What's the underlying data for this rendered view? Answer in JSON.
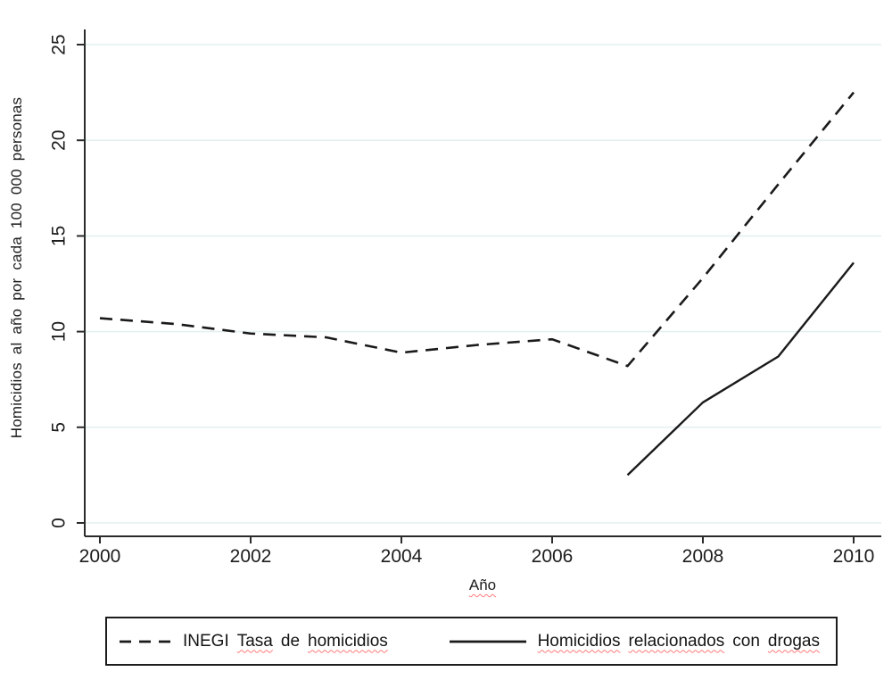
{
  "figure": {
    "background": "#ffffff",
    "y_axis_title": "Homicidios al año por cada 100 000 personas",
    "x_axis_title": "Año"
  },
  "chart_data": {
    "type": "line",
    "title": "",
    "xlabel": "Año",
    "ylabel": "Homicidios al año por cada 100 000 personas",
    "xlim": [
      2000,
      2010
    ],
    "ylim": [
      0,
      25
    ],
    "x_ticks": [
      2000,
      2002,
      2004,
      2006,
      2008,
      2010
    ],
    "y_ticks": [
      0,
      5,
      10,
      15,
      20,
      25
    ],
    "grid": "horizontal-only",
    "grid_color": "#e4eff1",
    "axis_color": "#2b2b2b",
    "legend_position": "bottom",
    "series": [
      {
        "name": "INEGI Tasa de homicidios",
        "line_style": "dashed",
        "color": "#1a1a1a",
        "x": [
          2000,
          2001,
          2002,
          2003,
          2004,
          2005,
          2006,
          2007,
          2008,
          2009,
          2010
        ],
        "values": [
          10.7,
          10.4,
          9.9,
          9.7,
          8.9,
          9.3,
          9.6,
          8.2,
          12.8,
          17.7,
          22.5
        ]
      },
      {
        "name": "Homicidios relacionados con drogas",
        "line_style": "solid",
        "color": "#1a1a1a",
        "x": [
          2007,
          2008,
          2009,
          2010
        ],
        "values": [
          2.5,
          6.3,
          8.7,
          13.6
        ]
      }
    ]
  },
  "legend": {
    "entries": [
      {
        "line_style": "dashed",
        "words": [
          {
            "text": "INEGI",
            "misspelled": false
          },
          {
            "text": "Tasa",
            "misspelled": true
          },
          {
            "text": "de",
            "misspelled": false
          },
          {
            "text": "homicidios",
            "misspelled": true
          }
        ]
      },
      {
        "line_style": "solid",
        "words": [
          {
            "text": "Homicidios",
            "misspelled": true
          },
          {
            "text": "relacionados",
            "misspelled": true
          },
          {
            "text": "con",
            "misspelled": false
          },
          {
            "text": "drogas",
            "misspelled": true
          }
        ]
      }
    ]
  },
  "spellcheck": {
    "underline_color": "#ff7a7a",
    "xlabel_misspelled": true
  }
}
